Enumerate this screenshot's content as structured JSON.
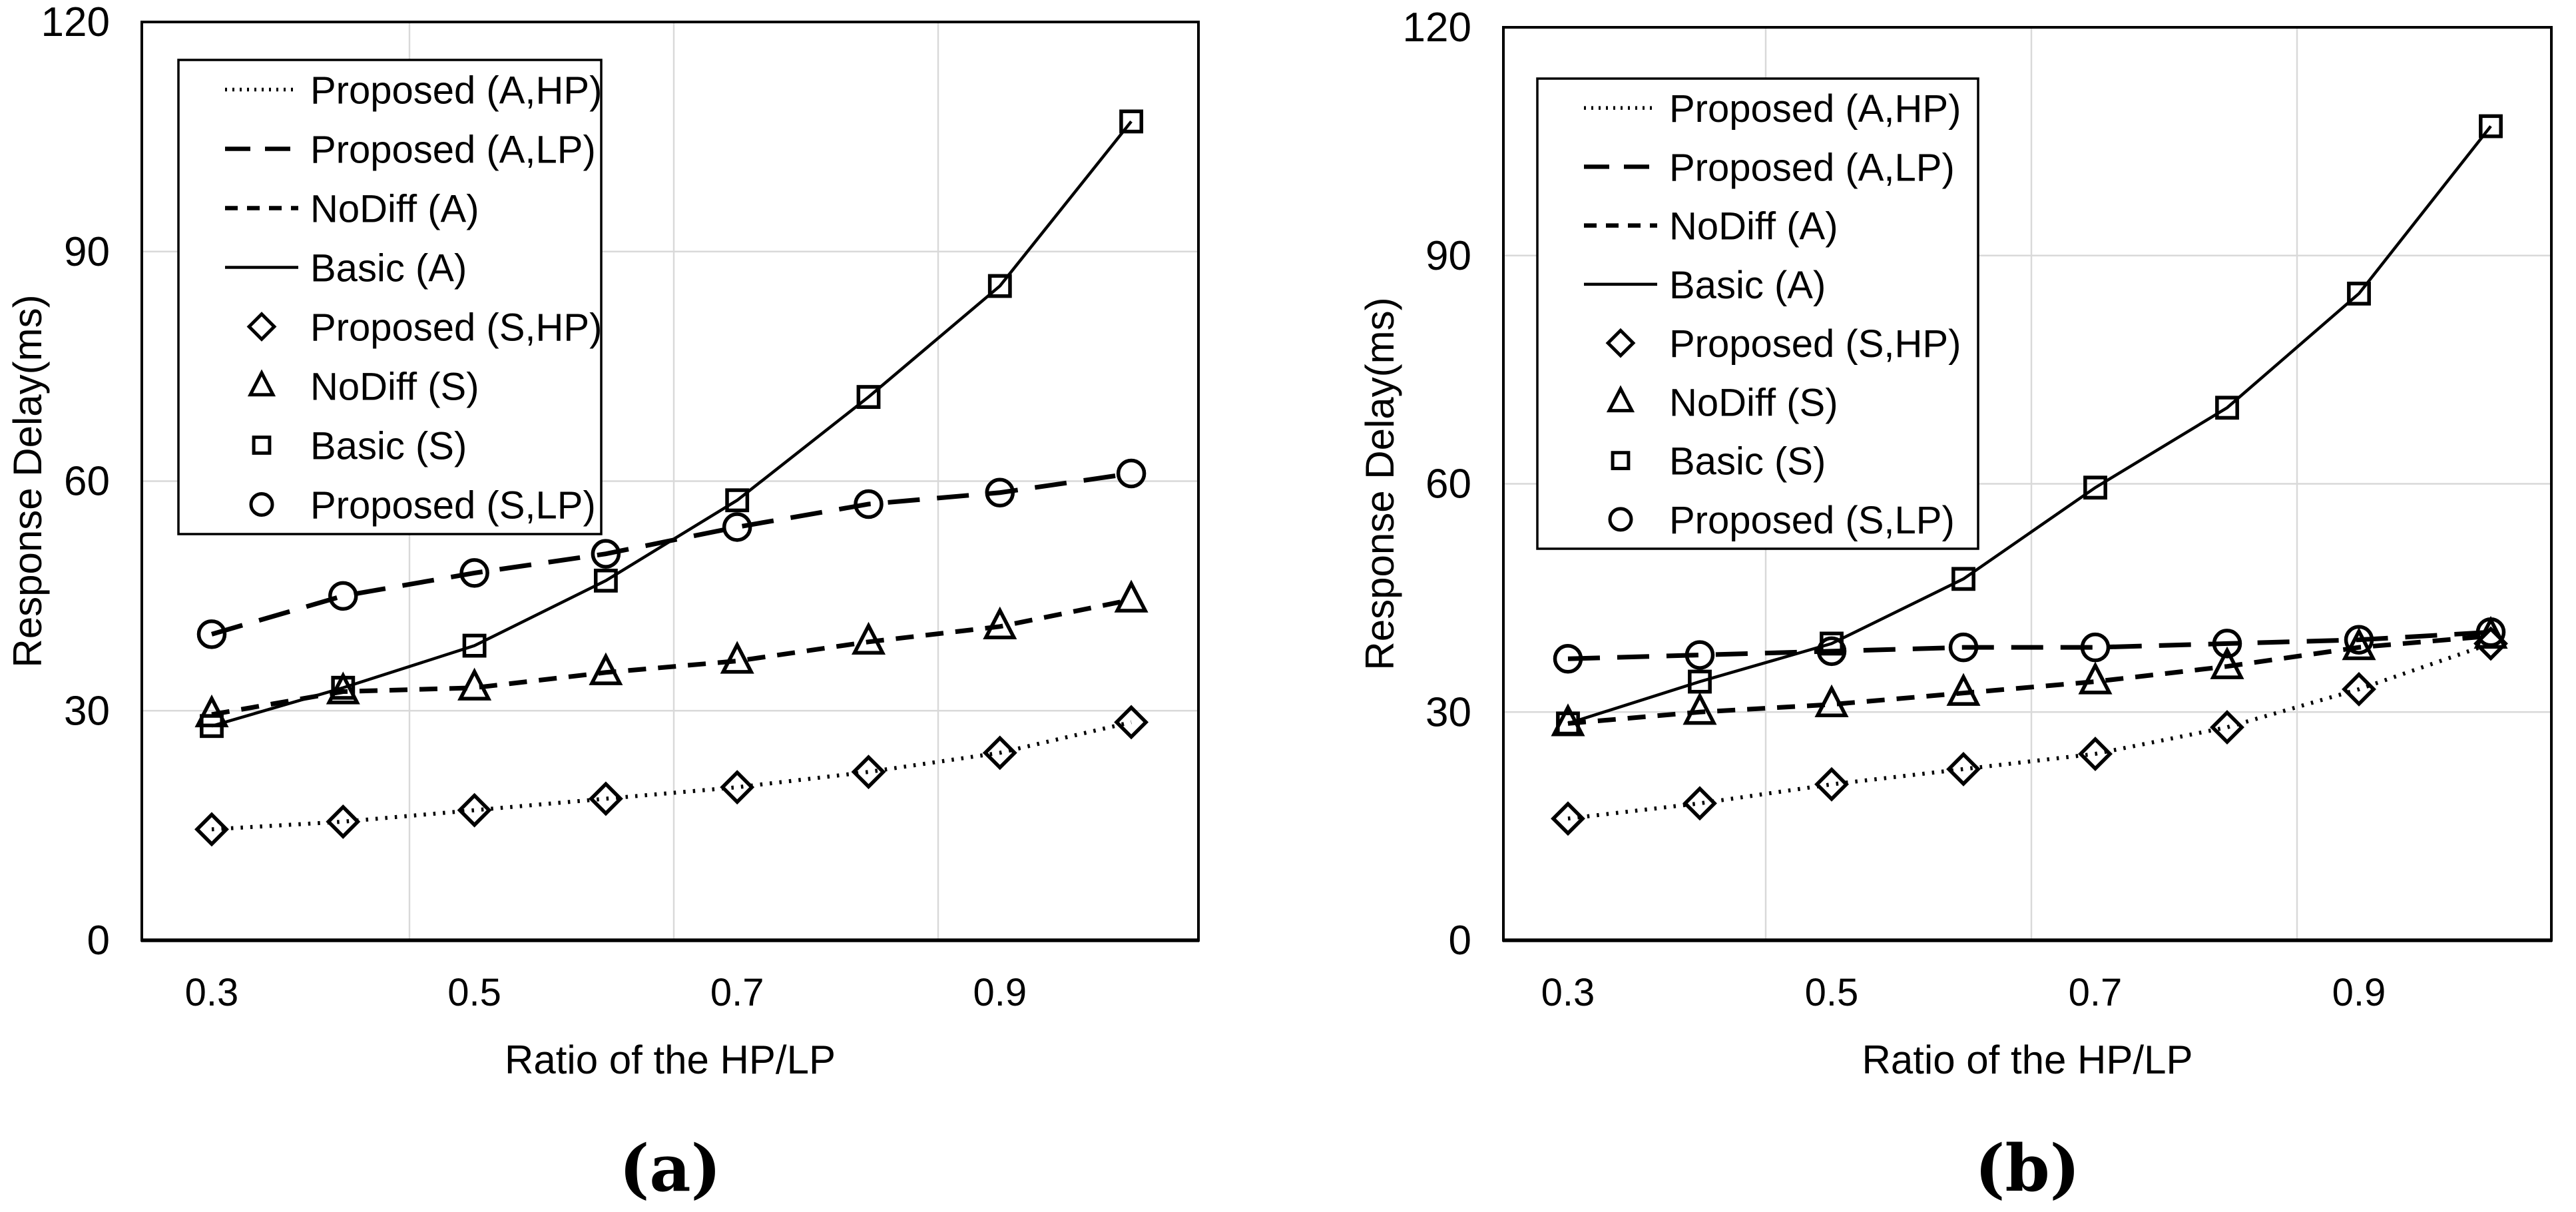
{
  "page": {
    "background_color": "#ffffff",
    "ink_color": "#000000",
    "grid_color": "#d9d9d9"
  },
  "chart_data": [
    {
      "type": "line",
      "caption": "(a)",
      "xlabel": "Ratio of the HP/LP",
      "ylabel": "Response Delay(ms)",
      "x": [
        0.3,
        0.4,
        0.5,
        0.6,
        0.7,
        0.8,
        0.9,
        1.0
      ],
      "xtick_labels": [
        "0.3",
        "0.5",
        "0.7",
        "0.9"
      ],
      "xtick_values": [
        0.3,
        0.5,
        0.7,
        0.9
      ],
      "yticks": [
        0,
        30,
        60,
        90,
        120
      ],
      "ytick_labels": [
        "0",
        "30",
        "60",
        "90",
        "120"
      ],
      "ylim": [
        0,
        120
      ],
      "grid": true,
      "legend_position": "upper-left-inside",
      "legend": [
        {
          "symbol": "dotted-line",
          "label": "Proposed (A,HP)"
        },
        {
          "symbol": "long-dash-line",
          "label": "Proposed (A,LP)"
        },
        {
          "symbol": "short-dash-line",
          "label": "NoDiff (A)"
        },
        {
          "symbol": "solid-line",
          "label": "Basic (A)"
        },
        {
          "symbol": "diamond-marker",
          "label": "Proposed (S,HP)"
        },
        {
          "symbol": "triangle-marker",
          "label": "NoDiff (S)"
        },
        {
          "symbol": "square-marker",
          "label": "Basic (S)"
        },
        {
          "symbol": "circle-marker",
          "label": "Proposed (S,LP)"
        }
      ],
      "series": [
        {
          "name": "Proposed (A,HP) / Proposed (S,HP)",
          "line_style": "dotted",
          "marker": "diamond",
          "values": [
            14.5,
            15.5,
            17,
            18.5,
            20,
            22,
            24.5,
            28.5
          ]
        },
        {
          "name": "Proposed (A,LP) / Proposed (S,LP)",
          "line_style": "long-dash",
          "marker": "circle",
          "values": [
            40,
            45,
            48,
            50.5,
            54,
            57,
            58.5,
            61
          ]
        },
        {
          "name": "NoDiff (A) / NoDiff (S)",
          "line_style": "short-dash",
          "marker": "triangle",
          "values": [
            29.5,
            32.5,
            33,
            35,
            36.5,
            39,
            41,
            44.5
          ]
        },
        {
          "name": "Basic (A) / Basic (S)",
          "line_style": "solid",
          "marker": "square",
          "values": [
            28,
            33,
            38.5,
            47,
            57.5,
            71,
            85.5,
            107
          ]
        }
      ]
    },
    {
      "type": "line",
      "caption": "(b)",
      "xlabel": "Ratio of the HP/LP",
      "ylabel": "Response Delay(ms)",
      "x": [
        0.3,
        0.4,
        0.5,
        0.6,
        0.7,
        0.8,
        0.9,
        1.0
      ],
      "xtick_labels": [
        "0.3",
        "0.5",
        "0.7",
        "0.9"
      ],
      "xtick_values": [
        0.3,
        0.5,
        0.7,
        0.9
      ],
      "yticks": [
        0,
        30,
        60,
        90,
        120
      ],
      "ytick_labels": [
        "0",
        "30",
        "60",
        "90",
        "120"
      ],
      "ylim": [
        0,
        120
      ],
      "grid": true,
      "legend_position": "upper-left-inside",
      "legend": [
        {
          "symbol": "dotted-line",
          "label": "Proposed (A,HP)"
        },
        {
          "symbol": "long-dash-line",
          "label": "Proposed (A,LP)"
        },
        {
          "symbol": "short-dash-line",
          "label": "NoDiff (A)"
        },
        {
          "symbol": "solid-line",
          "label": "Basic (A)"
        },
        {
          "symbol": "diamond-marker",
          "label": "Proposed (S,HP)"
        },
        {
          "symbol": "triangle-marker",
          "label": "NoDiff (S)"
        },
        {
          "symbol": "square-marker",
          "label": "Basic (S)"
        },
        {
          "symbol": "circle-marker",
          "label": "Proposed (S,LP)"
        }
      ],
      "series": [
        {
          "name": "Proposed (A,HP) / Proposed (S,HP)",
          "line_style": "dotted",
          "marker": "diamond",
          "values": [
            16,
            18,
            20.5,
            22.5,
            24.5,
            28,
            33,
            39
          ]
        },
        {
          "name": "Proposed (A,LP) / Proposed (S,LP)",
          "line_style": "long-dash",
          "marker": "circle",
          "values": [
            37,
            37.5,
            38,
            38.5,
            38.5,
            39,
            39.5,
            40.5
          ]
        },
        {
          "name": "NoDiff (A) / NoDiff (S)",
          "line_style": "short-dash",
          "marker": "triangle",
          "values": [
            28.5,
            30,
            31,
            32.5,
            34,
            36,
            38.5,
            40
          ]
        },
        {
          "name": "Basic (A) / Basic (S)",
          "line_style": "solid",
          "marker": "square",
          "values": [
            28.5,
            34,
            39,
            47.5,
            59.5,
            70,
            85,
            107
          ]
        }
      ]
    }
  ]
}
